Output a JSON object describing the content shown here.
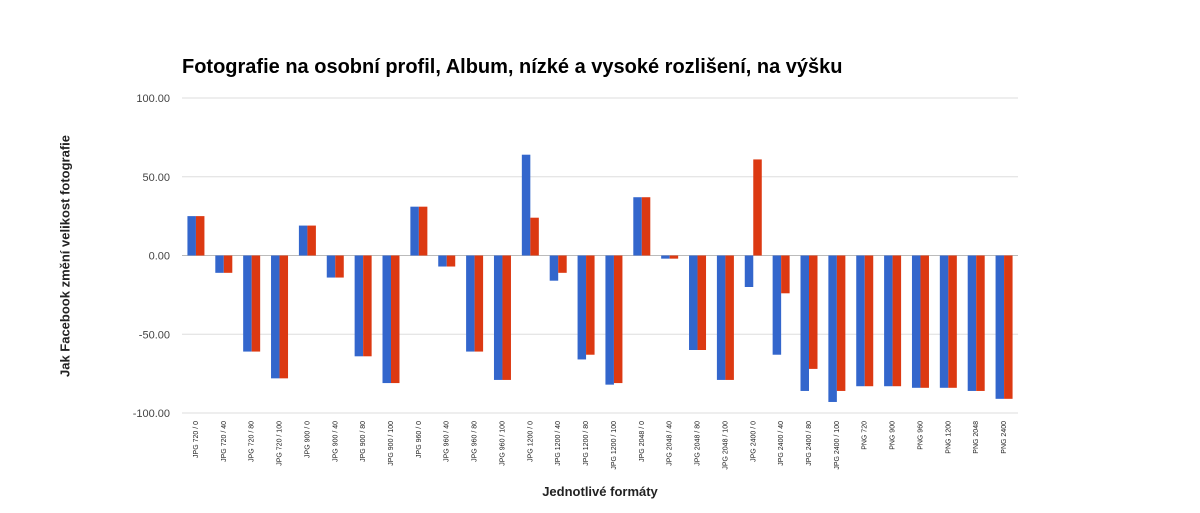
{
  "chart_data": {
    "type": "bar",
    "title": "Fotografie na osobní profil, Album, nízké a vysoké rozlišení, na výšku",
    "xlabel": "Jednotlivé formáty",
    "ylabel": "Jak Facebook změní velikost fotografie",
    "ylim": [
      -100,
      100
    ],
    "yticks": [
      "100.00",
      "50.00",
      "0.00",
      "-50.00",
      "-100.00"
    ],
    "ytick_values": [
      100,
      50,
      0,
      -50,
      -100
    ],
    "grid": true,
    "legend": "none",
    "categories": [
      "JPG 720 / 0",
      "JPG 720 / 40",
      "JPG 720 / 80",
      "JPG 720 / 100",
      "JPG 900 / 0",
      "JPG 900 / 40",
      "JPG 900 / 80",
      "JPG 900 / 100",
      "JPG 960 / 0",
      "JPG 960 / 40",
      "JPG 960 / 80",
      "JPG 960 / 100",
      "JPG 1200 / 0",
      "JPG 1200 / 40",
      "JPG 1200 / 80",
      "JPG 1200 / 100",
      "JPG 2048 / 0",
      "JPG 2048 / 40",
      "JPG 2048 / 80",
      "JPG 2048 / 100",
      "JPG 2400 / 0",
      "JPG 2400 / 40",
      "JPG 2400 / 80",
      "JPG 2400 / 100",
      "PNG 720",
      "PNG 900",
      "PNG 960",
      "PNG 1200",
      "PNG 2048",
      "PNG 2400"
    ],
    "series": [
      {
        "color": "#3366cc",
        "values": [
          25,
          -11,
          -61,
          -78,
          19,
          -14,
          -64,
          -81,
          31,
          -7,
          -61,
          -79,
          64,
          -16,
          -66,
          -82,
          37,
          -2,
          -60,
          -79,
          -20,
          -63,
          -86,
          -93,
          -83,
          -83,
          -84,
          -84,
          -86,
          -91
        ]
      },
      {
        "color": "#dc3912",
        "values": [
          25,
          -11,
          -61,
          -78,
          19,
          -14,
          -64,
          -81,
          31,
          -7,
          -61,
          -79,
          24,
          -11,
          -63,
          -81,
          37,
          -2,
          -60,
          -79,
          61,
          -24,
          -72,
          -86,
          -83,
          -83,
          -84,
          -84,
          -86,
          -91
        ]
      }
    ]
  }
}
